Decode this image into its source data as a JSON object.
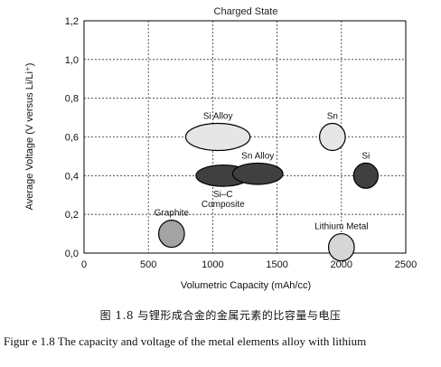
{
  "chart_data": {
    "type": "scatter",
    "title": "Charged State",
    "xlabel": "Volumetric Capacity (mAh/cc)",
    "ylabel": "Average Voltage (V versus Li/Li⁺)",
    "xlim": [
      0,
      2500
    ],
    "ylim": [
      0.0,
      1.2
    ],
    "x_ticks": [
      "0",
      "500",
      "1000",
      "1500",
      "2000",
      "2500"
    ],
    "y_ticks": [
      "0,0",
      "0,2",
      "0,4",
      "0,6",
      "0,8",
      "1,0",
      "1,2"
    ],
    "grid": true,
    "points": [
      {
        "label": "Graphite",
        "x": 680,
        "y": 0.1,
        "x_half_width": 100,
        "y_half_height": 0.07,
        "color": "#a3a3a3",
        "label_position": "above"
      },
      {
        "label": "Si Alloy",
        "x": 1040,
        "y": 0.6,
        "x_half_width": 250,
        "y_half_height": 0.07,
        "color": "#e6e6e6",
        "label_position": "above"
      },
      {
        "label": "Si–C Composite",
        "lines": [
          "Si–C",
          "Composite"
        ],
        "x": 1080,
        "y": 0.4,
        "x_half_width": 210,
        "y_half_height": 0.055,
        "color": "#404040",
        "label_position": "below"
      },
      {
        "label": "Sn  Alloy",
        "x": 1350,
        "y": 0.41,
        "x_half_width": 195,
        "y_half_height": 0.055,
        "color": "#404040",
        "label_position": "above"
      },
      {
        "label": "Sn",
        "x": 1930,
        "y": 0.6,
        "x_half_width": 100,
        "y_half_height": 0.07,
        "color": "#e6e6e6",
        "label_position": "above"
      },
      {
        "label": "Si",
        "x": 2190,
        "y": 0.4,
        "x_half_width": 95,
        "y_half_height": 0.065,
        "color": "#404040",
        "label_position": "above"
      },
      {
        "label": "Lithium Metal",
        "x": 2000,
        "y": 0.03,
        "x_half_width": 100,
        "y_half_height": 0.07,
        "color": "#d6d6d6",
        "label_position": "above"
      }
    ]
  },
  "captions": {
    "cn": "图 1.8  与锂形成合金的金属元素的比容量与电压",
    "en": "Figur e 1.8 The capacity and voltage of the metal elements alloy with lithium"
  }
}
